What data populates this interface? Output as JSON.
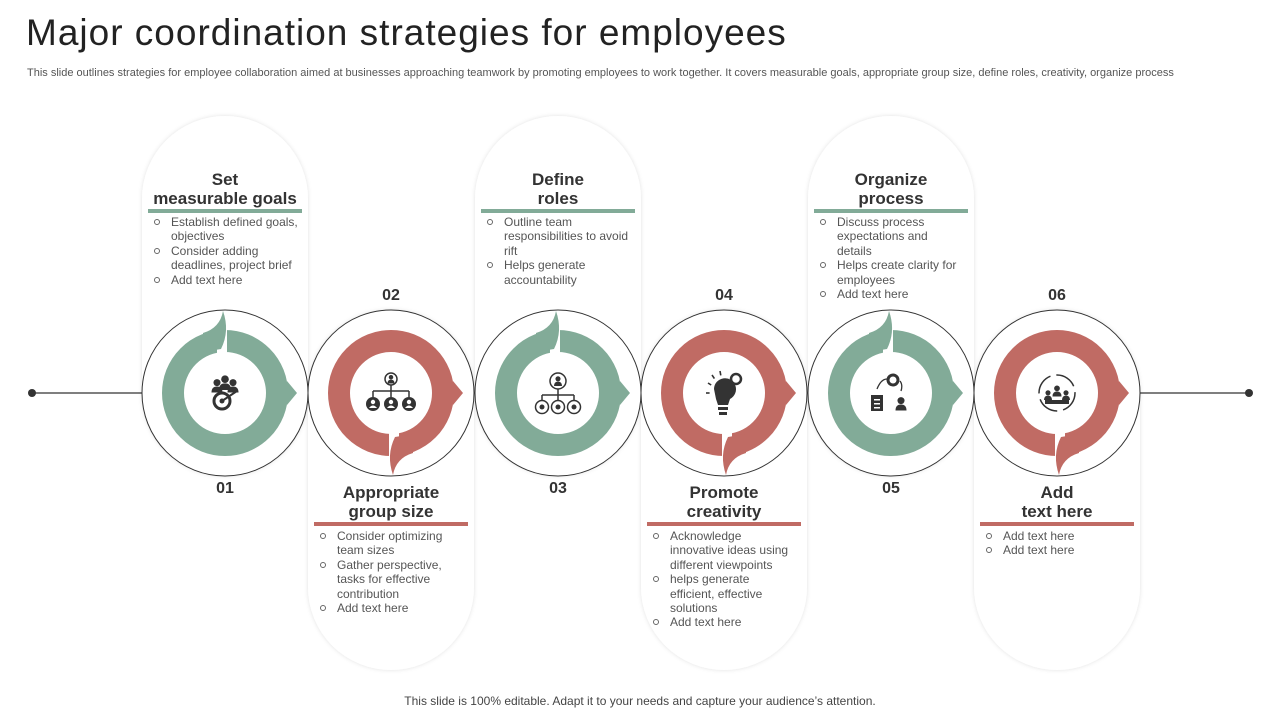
{
  "title": "Major coordination strategies for employees",
  "subtitle": "This slide outlines strategies for employee collaboration aimed at businesses approaching teamwork by promoting employees to work together. It covers measurable goals, appropriate group size, define roles, creativity, organize process",
  "footer": "This slide is 100% editable. Adapt it to your needs and capture your audience’s attention.",
  "colors": {
    "green": "#82ab98",
    "red": "#c06b64",
    "text": "#333333",
    "line": "#333333"
  },
  "steps": [
    {
      "number": "01",
      "title_line1": "Set",
      "title_line2": "measurable goals",
      "color": "green",
      "icon": "team-target-icon",
      "bullets": [
        "Establish defined goals, objectives",
        "Consider adding deadlines, project brief",
        "Add text here"
      ]
    },
    {
      "number": "02",
      "title_line1": "Appropriate",
      "title_line2": "group size",
      "color": "red",
      "icon": "org-chart-icon",
      "bullets": [
        "Consider optimizing team sizes",
        "Gather perspective, tasks for effective contribution",
        "Add text here"
      ]
    },
    {
      "number": "03",
      "title_line1": "Define",
      "title_line2": "roles",
      "color": "green",
      "icon": "role-network-icon",
      "bullets": [
        "Outline team responsibilities to avoid rift",
        "Helps generate accountability"
      ]
    },
    {
      "number": "04",
      "title_line1": "Promote",
      "title_line2": "creativity",
      "color": "red",
      "icon": "lightbulb-gear-icon",
      "bullets": [
        "Acknowledge innovative ideas using different viewpoints",
        " helps generate efficient, effective solutions",
        "Add text here"
      ]
    },
    {
      "number": "05",
      "title_line1": "Organize",
      "title_line2": "process",
      "color": "green",
      "icon": "process-checklist-icon",
      "bullets": [
        "Discuss process expectations and details",
        "Helps create clarity for employees",
        "Add text here"
      ]
    },
    {
      "number": "06",
      "title_line1": "Add",
      "title_line2": "text here",
      "color": "red",
      "icon": "team-cycle-icon",
      "bullets": [
        "Add text here",
        "Add text here"
      ]
    }
  ]
}
